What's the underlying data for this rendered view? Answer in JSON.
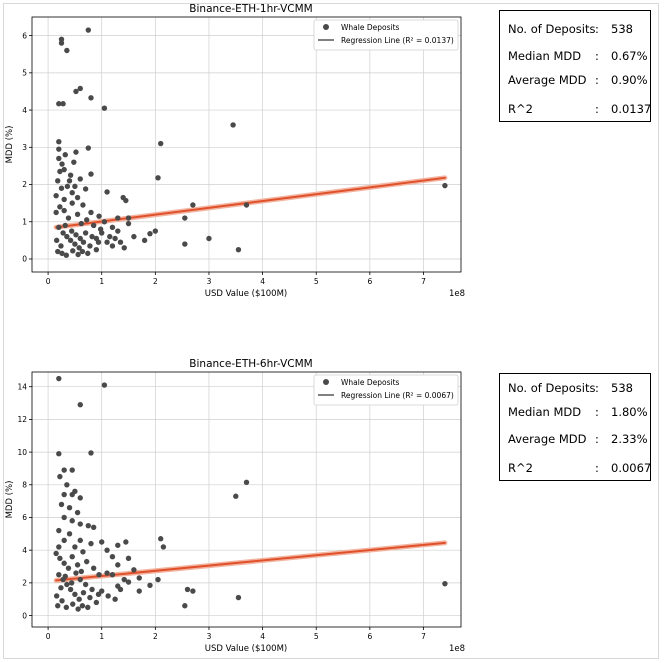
{
  "chart_data": [
    {
      "type": "scatter",
      "title": "Binance-ETH-1hr-VCMM",
      "xlabel": "USD Value ($100M)",
      "ylabel": "MDD (%)",
      "x_offset_label": "1e8",
      "xlim": [
        -0.3,
        7.7
      ],
      "ylim": [
        -0.35,
        6.5
      ],
      "xticks": [
        0,
        1,
        2,
        3,
        4,
        5,
        6,
        7
      ],
      "yticks": [
        0,
        1,
        2,
        3,
        4,
        5,
        6
      ],
      "grid": true,
      "legend": "top-right",
      "series": [
        {
          "name": "Whale Deposits",
          "points": [
            [
              0.75,
              6.15
            ],
            [
              0.25,
              5.9
            ],
            [
              0.25,
              5.8
            ],
            [
              0.35,
              5.6
            ],
            [
              0.6,
              4.58
            ],
            [
              0.52,
              4.5
            ],
            [
              0.8,
              4.33
            ],
            [
              0.2,
              4.17
            ],
            [
              0.28,
              4.17
            ],
            [
              1.05,
              4.05
            ],
            [
              3.45,
              3.6
            ],
            [
              0.2,
              3.15
            ],
            [
              0.75,
              2.98
            ],
            [
              0.2,
              2.95
            ],
            [
              0.32,
              2.8
            ],
            [
              0.52,
              2.87
            ],
            [
              2.1,
              3.1
            ],
            [
              0.8,
              2.28
            ],
            [
              2.05,
              2.18
            ],
            [
              0.6,
              2.15
            ],
            [
              0.5,
              1.95
            ],
            [
              0.7,
              1.88
            ],
            [
              0.45,
              1.78
            ],
            [
              1.4,
              1.65
            ],
            [
              1.45,
              1.57
            ],
            [
              1.1,
              1.8
            ],
            [
              2.7,
              1.45
            ],
            [
              3.7,
              1.45
            ],
            [
              1.3,
              1.1
            ],
            [
              1.5,
              1.1
            ],
            [
              2.55,
              1.1
            ],
            [
              1.2,
              0.85
            ],
            [
              1.15,
              0.6
            ],
            [
              1.5,
              0.95
            ],
            [
              1.3,
              0.75
            ],
            [
              1.0,
              0.7
            ],
            [
              0.9,
              0.55
            ],
            [
              1.6,
              0.6
            ],
            [
              1.8,
              0.5
            ],
            [
              1.9,
              0.68
            ],
            [
              2.0,
              0.75
            ],
            [
              2.55,
              0.4
            ],
            [
              3.0,
              0.55
            ],
            [
              3.55,
              0.25
            ],
            [
              7.4,
              1.97
            ],
            [
              0.15,
              1.25
            ],
            [
              0.22,
              1.4
            ],
            [
              0.3,
              1.3
            ],
            [
              0.38,
              1.1
            ],
            [
              0.45,
              1.5
            ],
            [
              0.55,
              1.2
            ],
            [
              0.62,
              0.95
            ],
            [
              0.72,
              1.05
            ],
            [
              0.85,
              0.9
            ],
            [
              0.2,
              0.85
            ],
            [
              0.28,
              0.7
            ],
            [
              0.35,
              0.6
            ],
            [
              0.42,
              0.5
            ],
            [
              0.5,
              0.4
            ],
            [
              0.58,
              0.3
            ],
            [
              0.66,
              0.45
            ],
            [
              0.78,
              0.35
            ],
            [
              0.9,
              0.25
            ],
            [
              0.18,
              0.2
            ],
            [
              0.26,
              0.15
            ],
            [
              0.34,
              0.1
            ],
            [
              0.46,
              0.22
            ],
            [
              0.56,
              0.12
            ],
            [
              0.64,
              0.2
            ],
            [
              0.74,
              0.15
            ],
            [
              0.15,
              1.7
            ],
            [
              0.25,
              1.9
            ],
            [
              0.3,
              1.6
            ],
            [
              0.4,
              2.1
            ],
            [
              0.22,
              2.35
            ],
            [
              0.18,
              2.1
            ],
            [
              0.3,
              2.4
            ],
            [
              0.42,
              2.25
            ],
            [
              0.55,
              1.65
            ],
            [
              0.65,
              1.45
            ],
            [
              0.8,
              1.25
            ],
            [
              0.95,
              1.15
            ],
            [
              1.05,
              1.0
            ],
            [
              1.1,
              0.45
            ],
            [
              1.2,
              0.35
            ],
            [
              0.98,
              0.8
            ],
            [
              0.16,
              0.5
            ],
            [
              0.24,
              0.35
            ],
            [
              0.32,
              0.9
            ],
            [
              0.44,
              0.75
            ],
            [
              0.52,
              0.65
            ],
            [
              0.6,
              0.55
            ],
            [
              0.7,
              0.7
            ],
            [
              0.82,
              0.6
            ],
            [
              0.94,
              0.45
            ],
            [
              1.25,
              0.55
            ],
            [
              1.35,
              0.45
            ],
            [
              1.42,
              0.3
            ],
            [
              0.36,
              1.95
            ],
            [
              0.48,
              2.6
            ],
            [
              0.26,
              2.55
            ],
            [
              0.2,
              2.7
            ]
          ]
        },
        {
          "name": "Regression Line (R² = 0.0137)",
          "line": [
            [
              0.15,
              0.85
            ],
            [
              7.4,
              2.18
            ]
          ]
        }
      ]
    },
    {
      "type": "scatter",
      "title": "Binance-ETH-6hr-VCMM",
      "xlabel": "USD Value ($100M)",
      "ylabel": "MDD (%)",
      "x_offset_label": "1e8",
      "xlim": [
        -0.3,
        7.7
      ],
      "ylim": [
        -0.7,
        14.9
      ],
      "xticks": [
        0,
        1,
        2,
        3,
        4,
        5,
        6,
        7
      ],
      "yticks": [
        0,
        2,
        4,
        6,
        8,
        10,
        12,
        14
      ],
      "grid": true,
      "legend": "top-right",
      "series": [
        {
          "name": "Whale Deposits",
          "points": [
            [
              0.2,
              14.5
            ],
            [
              1.05,
              14.1
            ],
            [
              0.6,
              12.9
            ],
            [
              0.2,
              9.9
            ],
            [
              0.8,
              9.95
            ],
            [
              0.3,
              8.9
            ],
            [
              0.45,
              8.9
            ],
            [
              0.22,
              8.5
            ],
            [
              0.35,
              8.0
            ],
            [
              0.5,
              7.6
            ],
            [
              0.3,
              7.4
            ],
            [
              0.45,
              7.4
            ],
            [
              0.6,
              7.2
            ],
            [
              0.25,
              6.8
            ],
            [
              0.4,
              6.6
            ],
            [
              0.55,
              6.3
            ],
            [
              0.3,
              6.0
            ],
            [
              0.45,
              5.8
            ],
            [
              0.6,
              5.6
            ],
            [
              0.75,
              5.5
            ],
            [
              0.85,
              5.4
            ],
            [
              0.2,
              5.2
            ],
            [
              0.4,
              5.0
            ],
            [
              0.6,
              4.6
            ],
            [
              0.8,
              4.4
            ],
            [
              1.0,
              4.5
            ],
            [
              1.1,
              4.0
            ],
            [
              1.3,
              4.3
            ],
            [
              1.45,
              4.5
            ],
            [
              2.1,
              4.7
            ],
            [
              2.15,
              4.2
            ],
            [
              3.5,
              7.3
            ],
            [
              3.7,
              8.15
            ],
            [
              1.2,
              3.6
            ],
            [
              1.5,
              3.5
            ],
            [
              1.3,
              3.1
            ],
            [
              1.1,
              2.6
            ],
            [
              1.6,
              2.8
            ],
            [
              1.7,
              2.3
            ],
            [
              1.5,
              2.05
            ],
            [
              1.3,
              1.8
            ],
            [
              1.9,
              1.85
            ],
            [
              2.05,
              2.2
            ],
            [
              2.6,
              1.6
            ],
            [
              2.7,
              1.5
            ],
            [
              1.7,
              1.5
            ],
            [
              2.55,
              0.6
            ],
            [
              3.55,
              1.1
            ],
            [
              7.4,
              1.95
            ],
            [
              0.15,
              3.8
            ],
            [
              0.22,
              3.5
            ],
            [
              0.3,
              3.2
            ],
            [
              0.38,
              2.9
            ],
            [
              0.45,
              3.6
            ],
            [
              0.55,
              3.1
            ],
            [
              0.62,
              2.7
            ],
            [
              0.72,
              3.3
            ],
            [
              0.85,
              2.9
            ],
            [
              0.95,
              2.5
            ],
            [
              0.2,
              2.5
            ],
            [
              0.28,
              2.2
            ],
            [
              0.35,
              1.9
            ],
            [
              0.42,
              1.6
            ],
            [
              0.5,
              1.3
            ],
            [
              0.58,
              1.0
            ],
            [
              0.66,
              1.4
            ],
            [
              0.78,
              1.1
            ],
            [
              0.9,
              0.8
            ],
            [
              1.0,
              1.5
            ],
            [
              1.12,
              1.2
            ],
            [
              0.18,
              0.6
            ],
            [
              0.26,
              0.9
            ],
            [
              0.34,
              0.5
            ],
            [
              0.46,
              0.7
            ],
            [
              0.56,
              0.4
            ],
            [
              0.64,
              0.6
            ],
            [
              0.74,
              0.5
            ],
            [
              0.16,
              1.2
            ],
            [
              0.24,
              1.7
            ],
            [
              0.32,
              2.4
            ],
            [
              0.44,
              2.0
            ],
            [
              0.52,
              2.6
            ],
            [
              0.6,
              2.2
            ],
            [
              0.7,
              1.9
            ],
            [
              0.82,
              1.6
            ],
            [
              0.94,
              1.3
            ],
            [
              1.25,
              1.0
            ],
            [
              1.35,
              1.6
            ],
            [
              1.42,
              2.2
            ],
            [
              1.2,
              2.5
            ],
            [
              0.2,
              4.2
            ],
            [
              0.3,
              4.6
            ],
            [
              0.5,
              4.2
            ],
            [
              0.65,
              3.9
            ]
          ]
        },
        {
          "name": "Regression Line (R² = 0.0067)",
          "line": [
            [
              0.15,
              2.15
            ],
            [
              7.4,
              4.45
            ]
          ]
        }
      ]
    }
  ],
  "stats": [
    {
      "rows": [
        {
          "label": "No. of Deposits",
          "sep": ":",
          "value": "538"
        },
        {
          "label": "Median MDD",
          "sep": ":",
          "value": "0.67%"
        },
        {
          "label": "Average MDD",
          "sep": ":",
          "value": "0.90%"
        },
        {
          "label": "R^2",
          "sep": ":",
          "value": "0.0137"
        }
      ]
    },
    {
      "rows": [
        {
          "label": "No. of Deposits",
          "sep": ":",
          "value": "538"
        },
        {
          "label": "Median MDD",
          "sep": ":",
          "value": "1.80%"
        },
        {
          "label": "Average MDD",
          "sep": ":",
          "value": "2.33%"
        },
        {
          "label": "R^2",
          "sep": ":",
          "value": "0.0067"
        }
      ]
    }
  ],
  "colors": {
    "point": "#4a4a4a",
    "regression": "#e0502a",
    "regression_halo": "#f2b4a0",
    "grid": "#cfcfcf",
    "axis": "#000000"
  }
}
